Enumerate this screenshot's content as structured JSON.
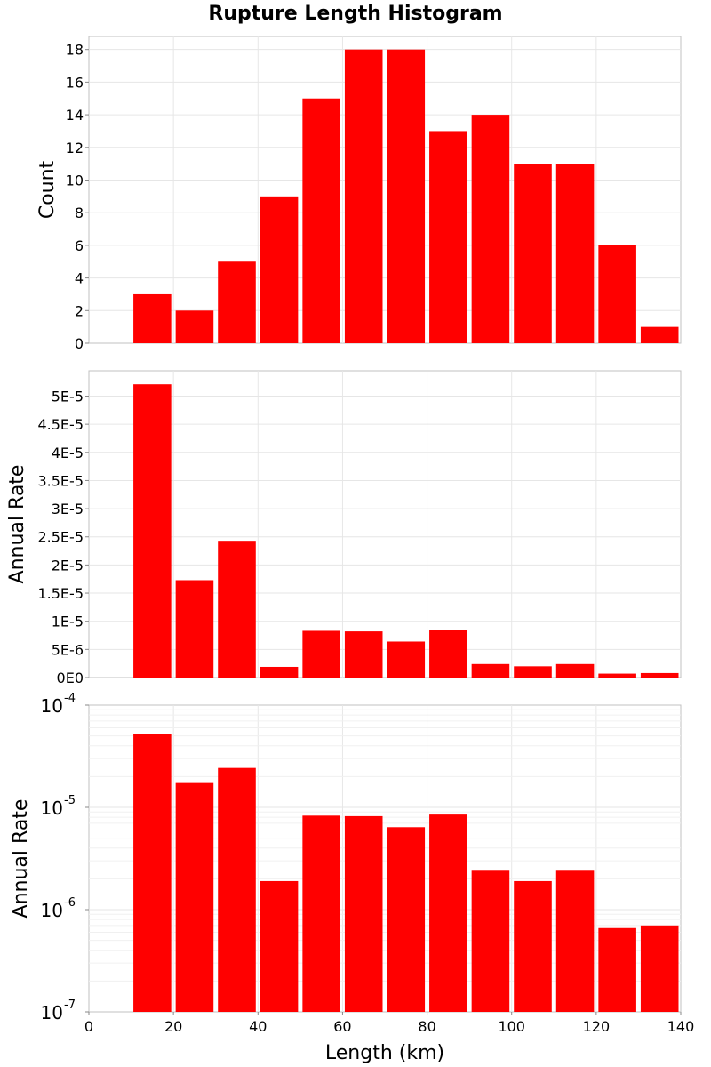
{
  "chart_data": {
    "title": "Rupture Length Histogram",
    "xlabel": "Length (km)",
    "xlim": [
      0,
      140
    ],
    "x_ticks": [
      0,
      20,
      40,
      60,
      80,
      100,
      120,
      140
    ],
    "bin_starts": [
      10,
      20,
      30,
      40,
      50,
      60,
      70,
      80,
      90,
      100,
      110,
      120,
      130
    ],
    "bin_width": 10,
    "bar_color": "#ff0000",
    "panels": [
      {
        "type": "bar",
        "ylabel": "Count",
        "yscale": "linear",
        "ylim": [
          0,
          18.8
        ],
        "y_ticks": [
          0,
          2,
          4,
          6,
          8,
          10,
          12,
          14,
          16,
          18
        ],
        "y_tick_labels": [
          "0",
          "2",
          "4",
          "6",
          "8",
          "10",
          "12",
          "14",
          "16",
          "18"
        ],
        "values": [
          3,
          2,
          5,
          9,
          15,
          18,
          18,
          13,
          14,
          11,
          11,
          6,
          1
        ]
      },
      {
        "type": "bar",
        "ylabel": "Annual Rate",
        "yscale": "linear",
        "ylim": [
          0,
          5.45e-05
        ],
        "y_ticks": [
          0,
          5e-06,
          1e-05,
          1.5e-05,
          2e-05,
          2.5e-05,
          3e-05,
          3.5e-05,
          4e-05,
          4.5e-05,
          5e-05
        ],
        "y_tick_labels": [
          "0E0",
          "5E-6",
          "1E-5",
          "1.5E-5",
          "2E-5",
          "2.5E-5",
          "3E-5",
          "3.5E-5",
          "4E-5",
          "4.5E-5",
          "5E-5"
        ],
        "values": [
          5.21e-05,
          1.73e-05,
          2.43e-05,
          1.9e-06,
          8.3e-06,
          8.2e-06,
          6.4e-06,
          8.5e-06,
          2.4e-06,
          2e-06,
          2.4e-06,
          7e-07,
          8e-07
        ]
      },
      {
        "type": "bar",
        "ylabel": "Annual Rate",
        "yscale": "log",
        "ylim": [
          1e-07,
          0.0001
        ],
        "y_ticks": [
          1e-07,
          1e-06,
          1e-05,
          0.0001
        ],
        "y_tick_labels": [
          {
            "base": "10",
            "exp": "-7"
          },
          {
            "base": "10",
            "exp": "-6"
          },
          {
            "base": "10",
            "exp": "-5"
          },
          {
            "base": "10",
            "exp": "-4"
          }
        ],
        "values": [
          5.2e-05,
          1.73e-05,
          2.43e-05,
          1.9e-06,
          8.3e-06,
          8.2e-06,
          6.4e-06,
          8.5e-06,
          2.4e-06,
          1.9e-06,
          2.4e-06,
          6.6e-07,
          7e-07
        ]
      }
    ]
  }
}
